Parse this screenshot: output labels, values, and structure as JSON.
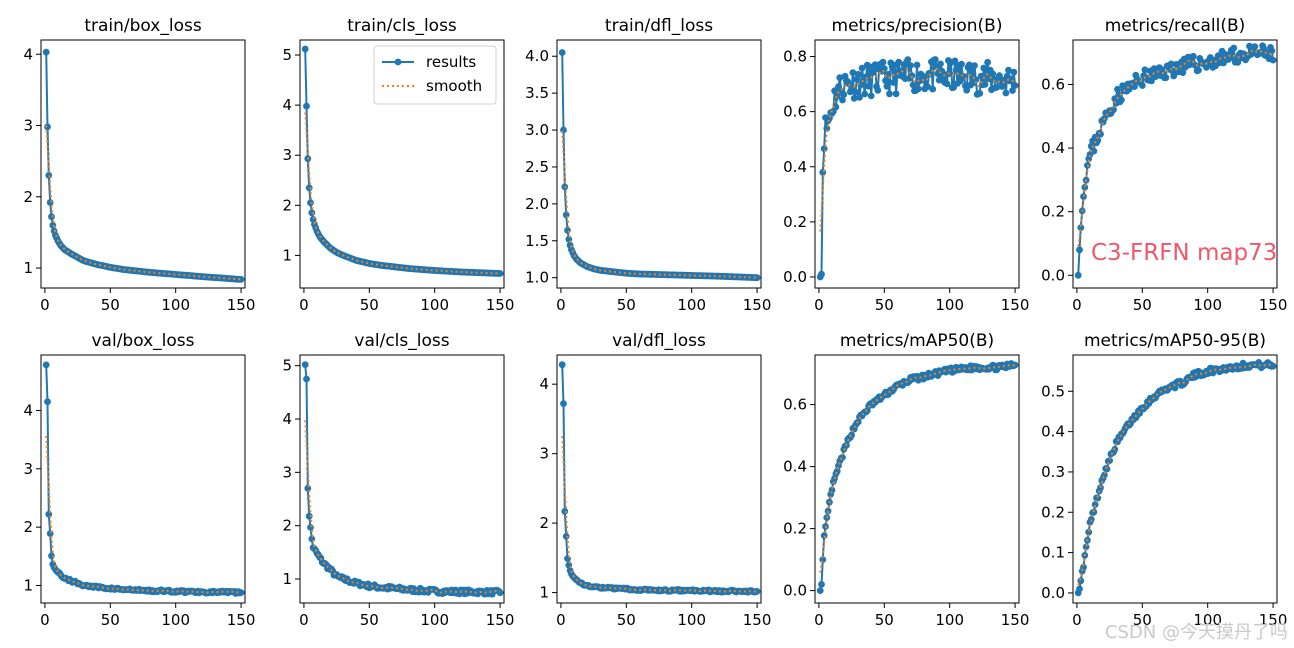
{
  "colors": {
    "results": "#1f77b4",
    "smooth": "#ff7f0e",
    "annotation": "#f0576b",
    "watermark": "#c9c9c9"
  },
  "legend": {
    "results": "results",
    "smooth": "smooth"
  },
  "annotation": "C3-FRFN map73",
  "watermark": "CSDN @今天摸丹了吗",
  "chart_data": [
    {
      "type": "line",
      "title": "train/box_loss",
      "xlim": [
        -3,
        153
      ],
      "ylim": [
        0.72,
        4.2
      ],
      "xticks": [
        0,
        50,
        100,
        150
      ],
      "yticks": [
        1,
        2,
        3,
        4
      ],
      "legend": false,
      "anchors": [
        [
          1,
          4.03
        ],
        [
          2,
          2.98
        ],
        [
          3,
          2.3
        ],
        [
          4,
          1.92
        ],
        [
          5,
          1.72
        ],
        [
          6,
          1.6
        ],
        [
          7,
          1.52
        ],
        [
          8,
          1.46
        ],
        [
          10,
          1.38
        ],
        [
          12,
          1.32
        ],
        [
          15,
          1.26
        ],
        [
          20,
          1.2
        ],
        [
          25,
          1.15
        ],
        [
          30,
          1.1
        ],
        [
          40,
          1.05
        ],
        [
          50,
          1.01
        ],
        [
          60,
          0.98
        ],
        [
          80,
          0.94
        ],
        [
          100,
          0.91
        ],
        [
          120,
          0.88
        ],
        [
          150,
          0.84
        ]
      ]
    },
    {
      "type": "line",
      "title": "train/cls_loss",
      "xlim": [
        -3,
        153
      ],
      "ylim": [
        0.35,
        5.3
      ],
      "xticks": [
        0,
        50,
        100,
        150
      ],
      "yticks": [
        1,
        2,
        3,
        4,
        5
      ],
      "legend": true,
      "anchors": [
        [
          1,
          5.12
        ],
        [
          2,
          3.98
        ],
        [
          3,
          2.93
        ],
        [
          4,
          2.35
        ],
        [
          5,
          2.05
        ],
        [
          6,
          1.85
        ],
        [
          7,
          1.72
        ],
        [
          8,
          1.62
        ],
        [
          10,
          1.48
        ],
        [
          12,
          1.38
        ],
        [
          15,
          1.28
        ],
        [
          20,
          1.15
        ],
        [
          25,
          1.06
        ],
        [
          30,
          1.0
        ],
        [
          40,
          0.9
        ],
        [
          50,
          0.84
        ],
        [
          60,
          0.8
        ],
        [
          80,
          0.74
        ],
        [
          100,
          0.7
        ],
        [
          120,
          0.67
        ],
        [
          150,
          0.64
        ]
      ]
    },
    {
      "type": "line",
      "title": "train/dfl_loss",
      "xlim": [
        -3,
        153
      ],
      "ylim": [
        0.86,
        4.22
      ],
      "xticks": [
        0,
        50,
        100,
        150
      ],
      "yticks": [
        1.0,
        1.5,
        2.0,
        2.5,
        3.0,
        3.5,
        4.0
      ],
      "ytickfmt": 1,
      "legend": false,
      "anchors": [
        [
          1,
          4.05
        ],
        [
          2,
          3.0
        ],
        [
          3,
          2.23
        ],
        [
          4,
          1.85
        ],
        [
          5,
          1.64
        ],
        [
          6,
          1.52
        ],
        [
          7,
          1.44
        ],
        [
          8,
          1.38
        ],
        [
          10,
          1.3
        ],
        [
          12,
          1.25
        ],
        [
          15,
          1.2
        ],
        [
          20,
          1.15
        ],
        [
          25,
          1.12
        ],
        [
          30,
          1.1
        ],
        [
          40,
          1.08
        ],
        [
          50,
          1.06
        ],
        [
          60,
          1.05
        ],
        [
          80,
          1.04
        ],
        [
          100,
          1.03
        ],
        [
          120,
          1.02
        ],
        [
          150,
          1.0
        ]
      ]
    },
    {
      "type": "line",
      "title": "metrics/precision(B)",
      "xlim": [
        -3,
        153
      ],
      "ylim": [
        -0.04,
        0.86
      ],
      "xticks": [
        0,
        50,
        100,
        150
      ],
      "yticks": [
        0.0,
        0.2,
        0.4,
        0.6,
        0.8
      ],
      "ytickfmt": 1,
      "legend": false,
      "anchors": [
        [
          1,
          0.0
        ],
        [
          2,
          0.01
        ],
        [
          3,
          0.38
        ],
        [
          4,
          0.52
        ],
        [
          6,
          0.55
        ],
        [
          8,
          0.58
        ],
        [
          10,
          0.62
        ],
        [
          12,
          0.65
        ],
        [
          15,
          0.68
        ],
        [
          20,
          0.7
        ],
        [
          30,
          0.71
        ],
        [
          50,
          0.72
        ],
        [
          70,
          0.73
        ],
        [
          100,
          0.73
        ],
        [
          130,
          0.72
        ],
        [
          150,
          0.71
        ]
      ],
      "noise": 0.06,
      "seed": 11
    },
    {
      "type": "line",
      "title": "metrics/recall(B)",
      "xlim": [
        -3,
        153
      ],
      "ylim": [
        -0.04,
        0.74
      ],
      "xticks": [
        0,
        50,
        100,
        150
      ],
      "yticks": [
        0.0,
        0.2,
        0.4,
        0.6
      ],
      "ytickfmt": 1,
      "legend": false,
      "anchors": [
        [
          1,
          0.0
        ],
        [
          2,
          0.08
        ],
        [
          3,
          0.15
        ],
        [
          4,
          0.2
        ],
        [
          5,
          0.26
        ],
        [
          6,
          0.3
        ],
        [
          8,
          0.34
        ],
        [
          10,
          0.38
        ],
        [
          15,
          0.43
        ],
        [
          20,
          0.48
        ],
        [
          25,
          0.52
        ],
        [
          30,
          0.56
        ],
        [
          40,
          0.59
        ],
        [
          50,
          0.62
        ],
        [
          60,
          0.63
        ],
        [
          80,
          0.66
        ],
        [
          100,
          0.67
        ],
        [
          120,
          0.69
        ],
        [
          140,
          0.7
        ],
        [
          150,
          0.69
        ]
      ],
      "noise": 0.025,
      "seed": 23
    },
    {
      "type": "line",
      "title": "val/box_loss",
      "xlim": [
        -3,
        153
      ],
      "ylim": [
        0.7,
        4.95
      ],
      "xticks": [
        0,
        50,
        100,
        150
      ],
      "yticks": [
        1,
        2,
        3,
        4
      ],
      "legend": false,
      "anchors": [
        [
          1,
          4.78
        ],
        [
          2,
          4.15
        ],
        [
          3,
          2.22
        ],
        [
          4,
          1.9
        ],
        [
          5,
          1.5
        ],
        [
          6,
          1.38
        ],
        [
          7,
          1.32
        ],
        [
          8,
          1.28
        ],
        [
          10,
          1.22
        ],
        [
          12,
          1.18
        ],
        [
          15,
          1.13
        ],
        [
          20,
          1.08
        ],
        [
          25,
          1.04
        ],
        [
          30,
          1.0
        ],
        [
          40,
          0.97
        ],
        [
          50,
          0.95
        ],
        [
          60,
          0.93
        ],
        [
          80,
          0.91
        ],
        [
          100,
          0.9
        ],
        [
          120,
          0.89
        ],
        [
          150,
          0.88
        ]
      ],
      "noise": 0.02,
      "seed": 5
    },
    {
      "type": "line",
      "title": "val/cls_loss",
      "xlim": [
        -3,
        153
      ],
      "ylim": [
        0.55,
        5.2
      ],
      "xticks": [
        0,
        50,
        100,
        150
      ],
      "yticks": [
        1,
        2,
        3,
        4,
        5
      ],
      "legend": false,
      "anchors": [
        [
          1,
          5.02
        ],
        [
          2,
          4.75
        ],
        [
          3,
          2.7
        ],
        [
          4,
          2.2
        ],
        [
          5,
          1.95
        ],
        [
          6,
          1.75
        ],
        [
          7,
          1.6
        ],
        [
          8,
          1.55
        ],
        [
          10,
          1.48
        ],
        [
          12,
          1.4
        ],
        [
          15,
          1.3
        ],
        [
          20,
          1.18
        ],
        [
          25,
          1.05
        ],
        [
          30,
          1.0
        ],
        [
          40,
          0.92
        ],
        [
          50,
          0.87
        ],
        [
          60,
          0.84
        ],
        [
          80,
          0.8
        ],
        [
          100,
          0.77
        ],
        [
          120,
          0.76
        ],
        [
          150,
          0.75
        ]
      ],
      "noise": 0.04,
      "seed": 7
    },
    {
      "type": "line",
      "title": "val/dfl_loss",
      "xlim": [
        -3,
        153
      ],
      "ylim": [
        0.85,
        4.42
      ],
      "xticks": [
        0,
        50,
        100,
        150
      ],
      "yticks": [
        1,
        2,
        3,
        4
      ],
      "legend": false,
      "anchors": [
        [
          1,
          4.28
        ],
        [
          2,
          3.72
        ],
        [
          3,
          2.17
        ],
        [
          4,
          1.82
        ],
        [
          5,
          1.48
        ],
        [
          6,
          1.38
        ],
        [
          7,
          1.32
        ],
        [
          8,
          1.28
        ],
        [
          10,
          1.22
        ],
        [
          12,
          1.18
        ],
        [
          15,
          1.14
        ],
        [
          20,
          1.1
        ],
        [
          25,
          1.08
        ],
        [
          30,
          1.07
        ],
        [
          40,
          1.06
        ],
        [
          50,
          1.05
        ],
        [
          60,
          1.04
        ],
        [
          80,
          1.03
        ],
        [
          100,
          1.03
        ],
        [
          120,
          1.02
        ],
        [
          150,
          1.02
        ]
      ],
      "noise": 0.015,
      "seed": 9
    },
    {
      "type": "line",
      "title": "metrics/mAP50(B)",
      "xlim": [
        -3,
        153
      ],
      "ylim": [
        -0.04,
        0.76
      ],
      "xticks": [
        0,
        50,
        100,
        150
      ],
      "yticks": [
        0.0,
        0.2,
        0.4,
        0.6
      ],
      "ytickfmt": 1,
      "legend": false,
      "anchors": [
        [
          1,
          0.0
        ],
        [
          2,
          0.02
        ],
        [
          3,
          0.1
        ],
        [
          4,
          0.17
        ],
        [
          5,
          0.2
        ],
        [
          6,
          0.23
        ],
        [
          8,
          0.28
        ],
        [
          10,
          0.33
        ],
        [
          15,
          0.4
        ],
        [
          20,
          0.46
        ],
        [
          25,
          0.51
        ],
        [
          30,
          0.55
        ],
        [
          40,
          0.6
        ],
        [
          50,
          0.63
        ],
        [
          60,
          0.66
        ],
        [
          70,
          0.68
        ],
        [
          80,
          0.69
        ],
        [
          100,
          0.71
        ],
        [
          120,
          0.72
        ],
        [
          140,
          0.72
        ],
        [
          150,
          0.73
        ]
      ],
      "noise": 0.008,
      "seed": 13
    },
    {
      "type": "line",
      "title": "metrics/mAP50-95(B)",
      "xlim": [
        -3,
        153
      ],
      "ylim": [
        -0.025,
        0.59
      ],
      "xticks": [
        0,
        50,
        100,
        150
      ],
      "yticks": [
        0.0,
        0.1,
        0.2,
        0.3,
        0.4,
        0.5
      ],
      "ytickfmt": 1,
      "legend": false,
      "anchors": [
        [
          1,
          0.0
        ],
        [
          2,
          0.01
        ],
        [
          3,
          0.03
        ],
        [
          5,
          0.07
        ],
        [
          8,
          0.13
        ],
        [
          10,
          0.17
        ],
        [
          15,
          0.23
        ],
        [
          20,
          0.29
        ],
        [
          25,
          0.33
        ],
        [
          30,
          0.37
        ],
        [
          40,
          0.42
        ],
        [
          50,
          0.46
        ],
        [
          60,
          0.49
        ],
        [
          70,
          0.51
        ],
        [
          80,
          0.52
        ],
        [
          90,
          0.54
        ],
        [
          100,
          0.55
        ],
        [
          110,
          0.555
        ],
        [
          120,
          0.56
        ],
        [
          130,
          0.565
        ],
        [
          150,
          0.565
        ]
      ],
      "noise": 0.007,
      "seed": 17
    }
  ]
}
